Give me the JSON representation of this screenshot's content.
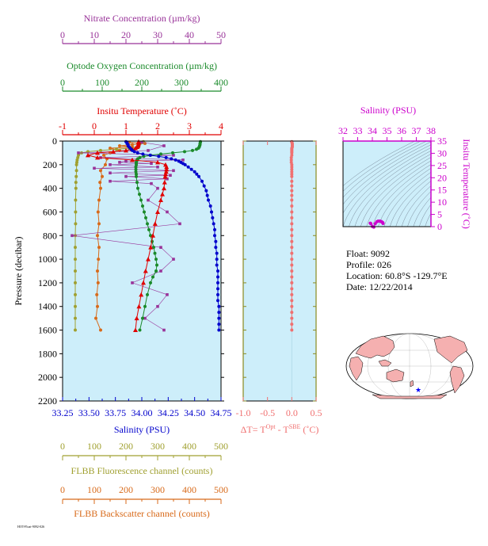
{
  "colors": {
    "panel_bg": "#cdeefa",
    "nitrate": "#993399",
    "oxygen": "#1a8a2a",
    "temperature": "#e00000",
    "salinity": "#0000cc",
    "fluorescence": "#a0a030",
    "backscatter": "#d86a1a",
    "delta_t": "#f07070",
    "ts_axis": "#cc00cc",
    "land": "#f5b0b0",
    "float_marker": "#0000ff"
  },
  "float_info": {
    "float": "Float:  9092",
    "profile": "Profile:  026",
    "location": "Location:  60.8°S  -129.7°E",
    "date": "Date:  12/22/2014"
  },
  "footer_id": "HOT-Float-9092-026",
  "chart_data": [
    {
      "type": "line",
      "panel": "main-profile",
      "ylabel": "Pressure (decibar)",
      "ylim": [
        2200,
        0
      ],
      "yticks": [
        0,
        200,
        400,
        600,
        800,
        1000,
        1200,
        1400,
        1600,
        1800,
        2000,
        2200
      ],
      "grid": false,
      "axes": [
        {
          "key": "nitrate",
          "label": "Nitrate Concentration (µm/kg)",
          "lim": [
            0,
            50
          ],
          "ticks": [
            0,
            10,
            20,
            30,
            40,
            50
          ],
          "position": "top-1"
        },
        {
          "key": "oxygen",
          "label": "Optode Oxygen Concentration (µm/kg)",
          "lim": [
            0,
            400
          ],
          "ticks": [
            0,
            100,
            200,
            300,
            400
          ],
          "position": "top-2"
        },
        {
          "key": "temperature",
          "label": "Insitu Temperature (˚C)",
          "lim": [
            -1,
            4
          ],
          "ticks": [
            -1,
            0,
            1,
            2,
            3,
            4
          ],
          "position": "top-3"
        },
        {
          "key": "salinity",
          "label": "Salinity (PSU)",
          "lim": [
            33.25,
            34.75
          ],
          "ticks": [
            33.25,
            33.5,
            33.75,
            34.0,
            34.25,
            34.5,
            34.75
          ],
          "tick_labels": [
            "33.25",
            "33.50",
            "33.75",
            "34.00",
            "34.25",
            "34.50",
            "34.75"
          ],
          "position": "bottom-1"
        },
        {
          "key": "fluorescence",
          "label": "FLBB Fluorescence channel (counts)",
          "lim": [
            0,
            500
          ],
          "ticks": [
            0,
            100,
            200,
            300,
            400,
            500
          ],
          "position": "bottom-2"
        },
        {
          "key": "backscatter",
          "label": "FLBB Backscatter channel (counts)",
          "lim": [
            0,
            500
          ],
          "ticks": [
            0,
            100,
            200,
            300,
            400,
            500
          ],
          "position": "bottom-3"
        }
      ],
      "series": [
        {
          "key": "salinity",
          "pressure": [
            5,
            10,
            20,
            30,
            40,
            50,
            60,
            70,
            80,
            90,
            100,
            110,
            120,
            130,
            140,
            150,
            160,
            170,
            180,
            190,
            200,
            220,
            240,
            260,
            280,
            300,
            340,
            380,
            420,
            460,
            500,
            550,
            600,
            650,
            700,
            750,
            800,
            850,
            900,
            950,
            1000,
            1050,
            1100,
            1150,
            1200,
            1250,
            1300,
            1350,
            1400,
            1450,
            1500,
            1550,
            1600
          ],
          "values": [
            33.85,
            33.86,
            33.86,
            33.87,
            33.87,
            33.88,
            33.89,
            33.9,
            33.91,
            33.93,
            33.96,
            34.01,
            34.08,
            34.16,
            34.23,
            34.28,
            34.32,
            34.35,
            34.37,
            34.39,
            34.41,
            34.44,
            34.47,
            34.5,
            34.52,
            34.54,
            34.57,
            34.59,
            34.61,
            34.62,
            34.63,
            34.65,
            34.66,
            34.67,
            34.68,
            34.69,
            34.69,
            34.7,
            34.7,
            34.71,
            34.71,
            34.71,
            34.72,
            34.72,
            34.72,
            34.72,
            34.72,
            34.72,
            34.73,
            34.73,
            34.73,
            34.73,
            34.73
          ]
        },
        {
          "key": "temperature",
          "pressure": [
            5,
            10,
            20,
            30,
            40,
            50,
            60,
            70,
            80,
            90,
            100,
            120,
            140,
            160,
            180,
            200,
            220,
            240,
            260,
            280,
            300,
            350,
            400,
            450,
            500,
            600,
            700,
            800,
            900,
            1000,
            1100,
            1200,
            1300,
            1400,
            1500,
            1600
          ],
          "values": [
            1.4,
            1.4,
            1.4,
            1.39,
            1.38,
            1.35,
            1.3,
            1.2,
            1.0,
            0.6,
            0.1,
            -0.2,
            0.1,
            1.2,
            2.0,
            2.25,
            2.28,
            2.28,
            2.27,
            2.25,
            2.24,
            2.22,
            2.2,
            2.15,
            2.1,
            2.0,
            1.92,
            1.85,
            1.78,
            1.7,
            1.62,
            1.55,
            1.48,
            1.41,
            1.34,
            1.3
          ]
        },
        {
          "key": "oxygen",
          "pressure": [
            5,
            10,
            20,
            30,
            40,
            50,
            60,
            70,
            80,
            90,
            100,
            110,
            120,
            130,
            140,
            150,
            160,
            170,
            180,
            190,
            200,
            220,
            240,
            260,
            280,
            300,
            350,
            400,
            450,
            500,
            550,
            600,
            650,
            700,
            750,
            800,
            850,
            900,
            950,
            1000,
            1050,
            1100,
            1150,
            1200,
            1300,
            1400,
            1500,
            1600
          ],
          "values": [
            348,
            348,
            347,
            347,
            346,
            345,
            343,
            338,
            328,
            308,
            278,
            248,
            222,
            205,
            195,
            190,
            188,
            187,
            186,
            186,
            186,
            185,
            185,
            185,
            186,
            186,
            188,
            190,
            194,
            198,
            202,
            206,
            210,
            214,
            218,
            222,
            226,
            230,
            233,
            236,
            238,
            236,
            228,
            222,
            214,
            208,
            202,
            195
          ]
        },
        {
          "key": "nitrate",
          "pressure": [
            10,
            40,
            80,
            100,
            120,
            140,
            160,
            170,
            180,
            190,
            200,
            220,
            230,
            250,
            270,
            290,
            300,
            320,
            340,
            360,
            400,
            500,
            600,
            700,
            800,
            900,
            1000,
            1100,
            1200,
            1300,
            1400,
            1500,
            1600
          ],
          "values": [
            25,
            32,
            27,
            5,
            35,
            12,
            38,
            20,
            18,
            28,
            15,
            30,
            10,
            35,
            15,
            34,
            20,
            33,
            15,
            28,
            30,
            27,
            33,
            37,
            3,
            31,
            35,
            31,
            22,
            33,
            30,
            26,
            32
          ]
        },
        {
          "key": "fluorescence",
          "pressure": [
            5,
            10,
            20,
            30,
            40,
            50,
            60,
            70,
            80,
            90,
            100,
            120,
            140,
            160,
            180,
            200,
            250,
            300,
            350,
            400,
            500,
            600,
            700,
            800,
            900,
            1000,
            1100,
            1200,
            1300,
            1400,
            1500,
            1600
          ],
          "values": [
            255,
            250,
            245,
            240,
            238,
            240,
            210,
            170,
            120,
            80,
            60,
            50,
            48,
            46,
            45,
            44,
            44,
            43,
            42,
            42,
            41,
            41,
            41,
            40,
            40,
            40,
            40,
            40,
            40,
            40,
            40,
            40
          ]
        },
        {
          "key": "backscatter",
          "pressure": [
            10,
            20,
            30,
            40,
            50,
            60,
            80,
            100,
            120,
            150,
            200,
            250,
            300,
            350,
            400,
            500,
            600,
            700,
            800,
            900,
            1000,
            1100,
            1200,
            1300,
            1400,
            1500,
            1600
          ],
          "values": [
            210,
            260,
            220,
            180,
            220,
            150,
            180,
            150,
            130,
            140,
            135,
            120,
            125,
            118,
            120,
            115,
            112,
            115,
            110,
            115,
            113,
            110,
            112,
            108,
            110,
            105,
            120
          ]
        }
      ]
    },
    {
      "type": "line",
      "panel": "delta-t",
      "xlabel": "ΔT= T",
      "xlabel_sup1": "Opt",
      "xlabel_mid": " - T",
      "xlabel_sup2": "SBE",
      "xlabel_unit": " (˚C)",
      "xlim": [
        -1.0,
        0.5
      ],
      "xticks": [
        -1.0,
        -0.5,
        0.0,
        0.5
      ],
      "xtick_labels": [
        "-1.0",
        "-0.5",
        "0.0",
        "0.5"
      ],
      "ylim": [
        2200,
        0
      ],
      "pressure": [
        5,
        10,
        20,
        30,
        40,
        50,
        60,
        70,
        80,
        90,
        100,
        120,
        140,
        160,
        180,
        200,
        220,
        240,
        260,
        280,
        300,
        340,
        380,
        420,
        460,
        500,
        550,
        600,
        650,
        700,
        750,
        800,
        850,
        900,
        950,
        1000,
        1050,
        1100,
        1150,
        1200,
        1250,
        1300,
        1350,
        1400,
        1450,
        1500,
        1550,
        1600
      ],
      "values": [
        0.0,
        0.0,
        0.01,
        0.01,
        0.01,
        0.01,
        0.0,
        0.0,
        0.0,
        0.0,
        0.0,
        0.0,
        -0.01,
        -0.01,
        -0.01,
        0.0,
        0.0,
        0.0,
        0.0,
        0.0,
        0.0,
        0.0,
        0.0,
        0.0,
        0.0,
        0.0,
        0.0,
        0.0,
        0.0,
        0.0,
        0.0,
        0.0,
        0.0,
        0.0,
        0.0,
        0.0,
        0.0,
        0.0,
        0.0,
        0.0,
        0.0,
        0.0,
        0.0,
        0.0,
        0.0,
        0.0,
        0.0,
        0.0
      ]
    },
    {
      "type": "scatter",
      "panel": "ts-diagram",
      "title": "Salinity (PSU)",
      "ylabel": "Insitu Temperature (˚C)",
      "xlim": [
        32,
        38
      ],
      "xticks": [
        32,
        33,
        34,
        35,
        36,
        37,
        38
      ],
      "ylim": [
        0,
        35
      ],
      "yticks": [
        0,
        5,
        10,
        15,
        20,
        25,
        30,
        35
      ],
      "x": [
        33.86,
        33.9,
        34.0,
        34.1,
        34.2,
        34.3,
        34.4,
        34.5,
        34.55,
        34.6,
        34.65,
        34.7,
        34.72,
        34.73
      ],
      "y": [
        1.4,
        1.2,
        0.1,
        -0.2,
        1.2,
        2.0,
        2.25,
        2.25,
        2.2,
        2.1,
        1.9,
        1.7,
        1.5,
        1.3
      ]
    },
    {
      "type": "map",
      "panel": "location-map",
      "float_lat": -60.8,
      "float_lon": -129.7
    }
  ]
}
